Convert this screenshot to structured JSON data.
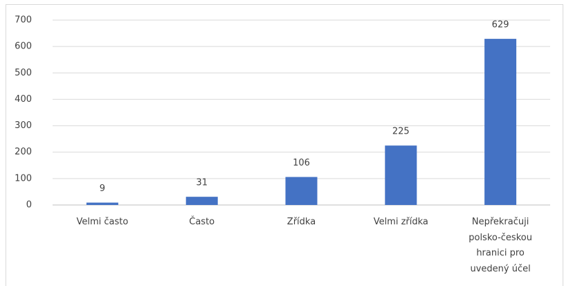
{
  "chart_data": {
    "type": "bar",
    "categories": [
      "Velmi často",
      "Často",
      "Zřídka",
      "Velmi zřídka",
      "Nepřekračuji polsko-českou hranici pro uvedený účel"
    ],
    "values": [
      9,
      31,
      106,
      225,
      629
    ],
    "color": "#4472c4",
    "ylim": [
      0,
      700
    ],
    "yticks": [
      0,
      100,
      200,
      300,
      400,
      500,
      600,
      700
    ],
    "grid": true,
    "data_labels": true
  }
}
